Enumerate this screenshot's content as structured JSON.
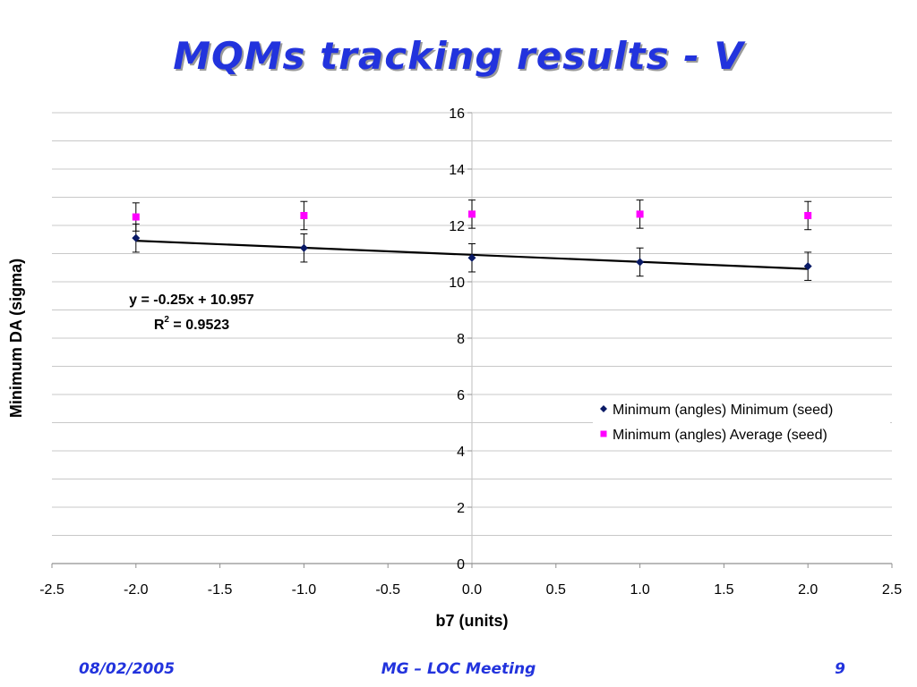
{
  "slide": {
    "title": "MQMs tracking results - V",
    "footer": {
      "date": "08/02/2005",
      "meeting": "MG – LOC Meeting",
      "page": "9"
    }
  },
  "chart_data": {
    "type": "scatter",
    "xlabel": "b7 (units)",
    "ylabel": "Minimum DA (sigma)",
    "xlim": [
      -2.5,
      2.5
    ],
    "ylim": [
      0,
      16
    ],
    "x_ticks": [
      "-2.5",
      "-2.0",
      "-1.5",
      "-1.0",
      "-0.5",
      "0.0",
      "0.5",
      "1.0",
      "1.5",
      "2.0",
      "2.5"
    ],
    "y_ticks": [
      "0",
      "2",
      "4",
      "6",
      "8",
      "10",
      "12",
      "14",
      "16"
    ],
    "grid": true,
    "legend": "right",
    "series": [
      {
        "name": "Minimum (angles) Minimum (seed)",
        "marker": "diamond",
        "color": "#0a1a66",
        "x": [
          -2,
          -1,
          0,
          1,
          2
        ],
        "y": [
          11.55,
          11.2,
          10.85,
          10.7,
          10.55
        ],
        "error": [
          0.5,
          0.5,
          0.5,
          0.5,
          0.5
        ]
      },
      {
        "name": "Minimum (angles) Average (seed)",
        "marker": "square",
        "color": "#ff00ff",
        "x": [
          -2,
          -1,
          0,
          1,
          2
        ],
        "y": [
          12.3,
          12.35,
          12.4,
          12.4,
          12.35
        ],
        "error": [
          0.5,
          0.5,
          0.5,
          0.5,
          0.5
        ]
      }
    ],
    "trendline": {
      "slope": -0.25,
      "intercept": 10.957,
      "equation": "y = -0.25x + 10.957",
      "r2_label": "R",
      "r2_sup": "2",
      "r2_value": " = 0.9523"
    }
  }
}
